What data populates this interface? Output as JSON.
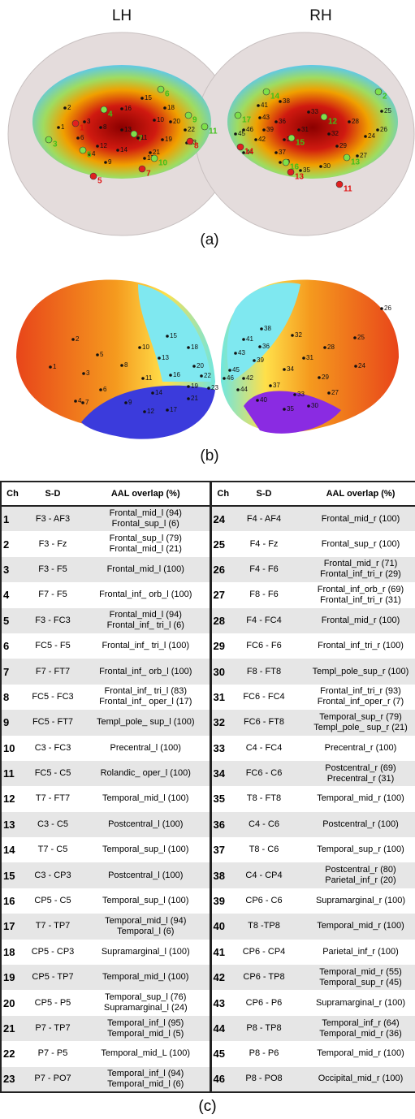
{
  "panel_a": {
    "left_title": "LH",
    "right_title": "RH",
    "caption": "(a)",
    "left_channels": [
      "2",
      "16",
      "15",
      "18",
      "1",
      "8",
      "3",
      "10",
      "13",
      "20",
      "11",
      "22",
      "12",
      "14",
      "19",
      "23",
      "6",
      "4",
      "21",
      "9",
      "17"
    ],
    "left_optodes_green": [
      "4",
      "6",
      "9",
      "11",
      "7",
      "3",
      "5",
      "10"
    ],
    "left_optodes_red": [
      "5",
      "7",
      "8",
      "1"
    ],
    "right_channels": [
      "38",
      "33",
      "41",
      "36",
      "28",
      "25",
      "31",
      "32",
      "39",
      "34",
      "24",
      "29",
      "46",
      "42",
      "37",
      "44",
      "27",
      "40",
      "35",
      "30",
      "43",
      "45",
      "26"
    ],
    "right_optodes_green": [
      "14",
      "17",
      "12",
      "15",
      "2",
      "13",
      "16"
    ],
    "right_optodes_red": [
      "14",
      "13",
      "11"
    ]
  },
  "panel_b": {
    "caption": "(b)",
    "left_channels": [
      "2",
      "5",
      "1",
      "8",
      "10",
      "3",
      "13",
      "15",
      "18",
      "11",
      "16",
      "20",
      "22",
      "6",
      "4",
      "7",
      "9",
      "14",
      "19",
      "23",
      "21",
      "12",
      "17"
    ],
    "right_channels": [
      "38",
      "32",
      "41",
      "36",
      "43",
      "28",
      "25",
      "31",
      "39",
      "34",
      "24",
      "29",
      "45",
      "46",
      "42",
      "37",
      "44",
      "27",
      "40",
      "33",
      "30",
      "35",
      "26"
    ]
  },
  "panel_c": {
    "caption": "(c)"
  },
  "table": {
    "headers": [
      "Ch",
      "S-D",
      "AAL overlap (%)"
    ],
    "left_rows": [
      {
        "ch": "1",
        "sd": "F3 - AF3",
        "aal": [
          "Frontal_mid_l  (94)",
          "Frontal_sup_l  (6)"
        ]
      },
      {
        "ch": "2",
        "sd": "F3 - Fz",
        "aal": [
          "Frontal_sup_l  (79)",
          "Frontal_mid_l  (21)"
        ]
      },
      {
        "ch": "3",
        "sd": "F3 - F5",
        "aal": [
          "Frontal_mid_l  (100)"
        ]
      },
      {
        "ch": "4",
        "sd": "F7 - F5",
        "aal": [
          "Frontal_inf_ orb_l  (100)"
        ]
      },
      {
        "ch": "5",
        "sd": "F3 - FC3",
        "aal": [
          "Frontal_mid_l  (94)",
          "Frontal_inf_ tri_l  (6)"
        ]
      },
      {
        "ch": "6",
        "sd": "FC5 - F5",
        "aal": [
          "Frontal_inf_ tri_l  (100)"
        ]
      },
      {
        "ch": "7",
        "sd": "F7 - FT7",
        "aal": [
          "Frontal_inf_ orb_l  (100)"
        ]
      },
      {
        "ch": "8",
        "sd": "FC5 - FC3",
        "aal": [
          "Frontal_inf_ tri_l  (83)",
          "Frontal_inf_ oper_l  (17)"
        ]
      },
      {
        "ch": "9",
        "sd": "FC5 - FT7",
        "aal": [
          "Templ_pole_ sup_l  (100)"
        ]
      },
      {
        "ch": "10",
        "sd": "C3 - FC3",
        "aal": [
          "Precentral_l  (100)"
        ]
      },
      {
        "ch": "11",
        "sd": "FC5 - C5",
        "aal": [
          "Rolandic_ oper_l  (100)"
        ]
      },
      {
        "ch": "12",
        "sd": "T7 - FT7",
        "aal": [
          "Temporal_mid_l  (100)"
        ]
      },
      {
        "ch": "13",
        "sd": "C3 - C5",
        "aal": [
          "Postcentral_l  (100)"
        ]
      },
      {
        "ch": "14",
        "sd": "T7 - C5",
        "aal": [
          "Temporal_sup_l  (100)"
        ]
      },
      {
        "ch": "15",
        "sd": "C3 - CP3",
        "aal": [
          "Postcentral_l  (100)"
        ]
      },
      {
        "ch": "16",
        "sd": "CP5 - C5",
        "aal": [
          "Temporal_sup_l (100)"
        ]
      },
      {
        "ch": "17",
        "sd": "T7 - TP7",
        "aal": [
          "Temporal_mid_l  (94)",
          "Temporal_l  (6)"
        ]
      },
      {
        "ch": "18",
        "sd": "CP5 - CP3",
        "aal": [
          "Supramarginal_l  (100)"
        ]
      },
      {
        "ch": "19",
        "sd": "CP5 - TP7",
        "aal": [
          "Temporal_mid_l  (100)"
        ]
      },
      {
        "ch": "20",
        "sd": "CP5 - P5",
        "aal": [
          "Temporal_sup_l  (76)",
          "Supramarginal_l  (24)"
        ]
      },
      {
        "ch": "21",
        "sd": "P7 - TP7",
        "aal": [
          "Temporal_inf_l  (95)",
          "Temporal_mid_l  (5)"
        ]
      },
      {
        "ch": "22",
        "sd": "P7 - P5",
        "aal": [
          "Temporal_mid_L (100)"
        ]
      },
      {
        "ch": "23",
        "sd": "P7 - PO7",
        "aal": [
          "Temporal_inf_l  (94)",
          "Temporal_mid_l  (6)"
        ]
      }
    ],
    "right_rows": [
      {
        "ch": "24",
        "sd": "F4 - AF4",
        "aal": [
          "Frontal_mid_r  (100)"
        ]
      },
      {
        "ch": "25",
        "sd": "F4 - Fz",
        "aal": [
          "Frontal_sup_r  (100)"
        ]
      },
      {
        "ch": "26",
        "sd": "F4 - F6",
        "aal": [
          "Frontal_mid_r  (71)",
          "Frontal_inf_tri_r  (29)"
        ]
      },
      {
        "ch": "27",
        "sd": "F8 - F6",
        "aal": [
          "Frontal_inf_orb_r  (69)",
          "Frontal_inf_tri_r  (31)"
        ]
      },
      {
        "ch": "28",
        "sd": "F4 - FC4",
        "aal": [
          "Frontal_mid_r  (100)"
        ]
      },
      {
        "ch": "29",
        "sd": "FC6 - F6",
        "aal": [
          "Frontal_inf_tri_r  (100)"
        ]
      },
      {
        "ch": "30",
        "sd": "F8 - FT8",
        "aal": [
          "Templ_pole_sup_r  (100)"
        ]
      },
      {
        "ch": "31",
        "sd": "FC6 - FC4",
        "aal": [
          "Frontal_inf_tri_r  (93)",
          "Frontal_inf_oper_r  (7)"
        ]
      },
      {
        "ch": "32",
        "sd": "FC6 - FT8",
        "aal": [
          "Temporal_sup_r  (79)",
          "Templ_pole_ sup_r  (21)"
        ]
      },
      {
        "ch": "33",
        "sd": "C4 - FC4",
        "aal": [
          "Precentral_r  (100)"
        ]
      },
      {
        "ch": "34",
        "sd": "FC6 - C6",
        "aal": [
          "Postcentral_r  (69)",
          "Precentral_r  (31)"
        ]
      },
      {
        "ch": "35",
        "sd": "T8 - FT8",
        "aal": [
          "Temporal_mid_r  (100)"
        ]
      },
      {
        "ch": "36",
        "sd": "C4 - C6",
        "aal": [
          "Postcentral_r  (100)"
        ]
      },
      {
        "ch": "37",
        "sd": "T8 - C6",
        "aal": [
          "Temporal_sup_r  (100)"
        ]
      },
      {
        "ch": "38",
        "sd": "C4 - CP4",
        "aal": [
          "Postcentral_r  (80)",
          "Parietal_inf_r  (20)"
        ]
      },
      {
        "ch": "39",
        "sd": "CP6 - C6",
        "aal": [
          "Supramarginal_r  (100)"
        ]
      },
      {
        "ch": "40",
        "sd": "T8 -TP8",
        "aal": [
          "Temporal_mid_r  (100)"
        ]
      },
      {
        "ch": "41",
        "sd": "CP6 - CP4",
        "aal": [
          "Parietal_inf_r  (100)"
        ]
      },
      {
        "ch": "42",
        "sd": "CP6 - TP8",
        "aal": [
          "Temporal_mid_r  (55)",
          "Temporal_sup_r  (45)"
        ]
      },
      {
        "ch": "43",
        "sd": "CP6 - P6",
        "aal": [
          "Supramarginal_r  (100)"
        ]
      },
      {
        "ch": "44",
        "sd": "P8 - TP8",
        "aal": [
          "Temporal_inf_r  (64)",
          "Temporal_mid_r  (36)"
        ]
      },
      {
        "ch": "45",
        "sd": "P8 - P6",
        "aal": [
          "Temporal_mid_r  (100)"
        ]
      },
      {
        "ch": "46",
        "sd": "P8 - PO8",
        "aal": [
          "Occipital_mid_r  (100)"
        ]
      }
    ]
  }
}
